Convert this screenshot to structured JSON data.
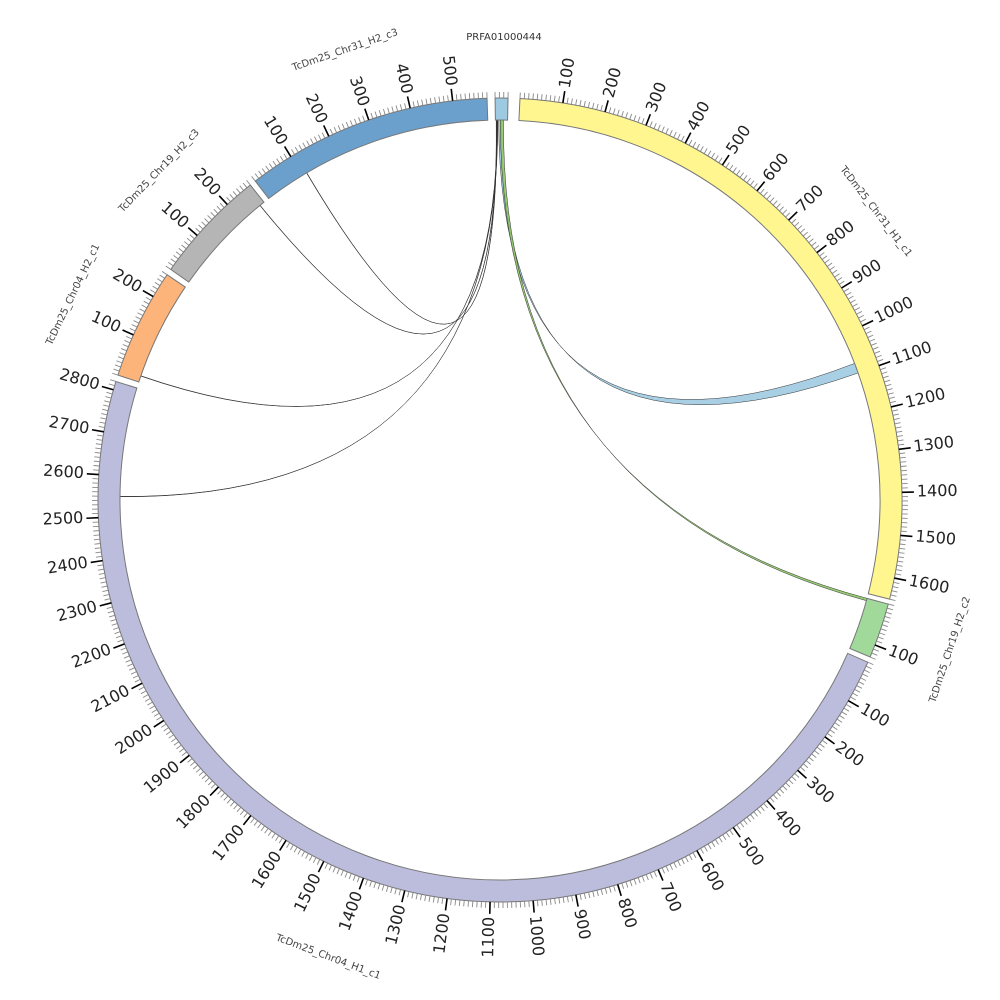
{
  "title": "PRFA01000444",
  "tick_interval_minor": 10,
  "tick_interval_major": 100,
  "segments": [
    {
      "name": "PRFA01000444",
      "length": 30,
      "color": "#9ecae1",
      "show_name": false
    },
    {
      "name": "TcDm25_Chr31_H1_c1",
      "length": 1650,
      "color": "#fff68f",
      "show_name": true
    },
    {
      "name": "TcDm25_Chr19_H2_c2",
      "length": 130,
      "color": "#a1d99b",
      "show_name": true
    },
    {
      "name": "TcDm25_Chr04_H1_c1",
      "length": 2820,
      "color": "#bcbddc",
      "show_name": true
    },
    {
      "name": "TcDm25_Chr04_H2_c1",
      "length": 260,
      "color": "#fdb47a",
      "show_name": true
    },
    {
      "name": "TcDm25_Chr19_H2_c3",
      "length": 270,
      "color": "#b5b5b5",
      "show_name": true
    },
    {
      "name": "TcDm25_Chr31_H2_c3",
      "length": 580,
      "color": "#6b9fcc",
      "show_name": true
    }
  ],
  "links": [
    {
      "source": "PRFA01000444",
      "source_range": [
        8,
        14
      ],
      "target": "TcDm25_Chr31_H1_c1",
      "target_range": [
        1075,
        1100
      ],
      "color": "#9ecae1"
    },
    {
      "source": "PRFA01000444",
      "source_range": [
        12,
        20
      ],
      "target": "TcDm25_Chr19_H2_c2",
      "target_range": [
        0,
        6
      ],
      "color": "#8cc665"
    },
    {
      "source": "PRFA01000444",
      "source_range": [
        2,
        3
      ],
      "target": "TcDm25_Chr31_H2_c3",
      "target_range": [
        112,
        113
      ],
      "color": "#1a1a1a"
    },
    {
      "source": "PRFA01000444",
      "source_range": [
        3,
        4
      ],
      "target": "TcDm25_Chr19_H2_c3",
      "target_range": [
        257,
        258
      ],
      "color": "#1a2a1a"
    },
    {
      "source": "PRFA01000444",
      "source_range": [
        4,
        5
      ],
      "target": "TcDm25_Chr04_H2_c1",
      "target_range": [
        15,
        16
      ],
      "color": "#3a3000"
    },
    {
      "source": "PRFA01000444",
      "source_range": [
        5,
        6
      ],
      "target": "TcDm25_Chr04_H1_c1",
      "target_range": [
        2549,
        2550
      ],
      "color": "#102040"
    }
  ]
}
